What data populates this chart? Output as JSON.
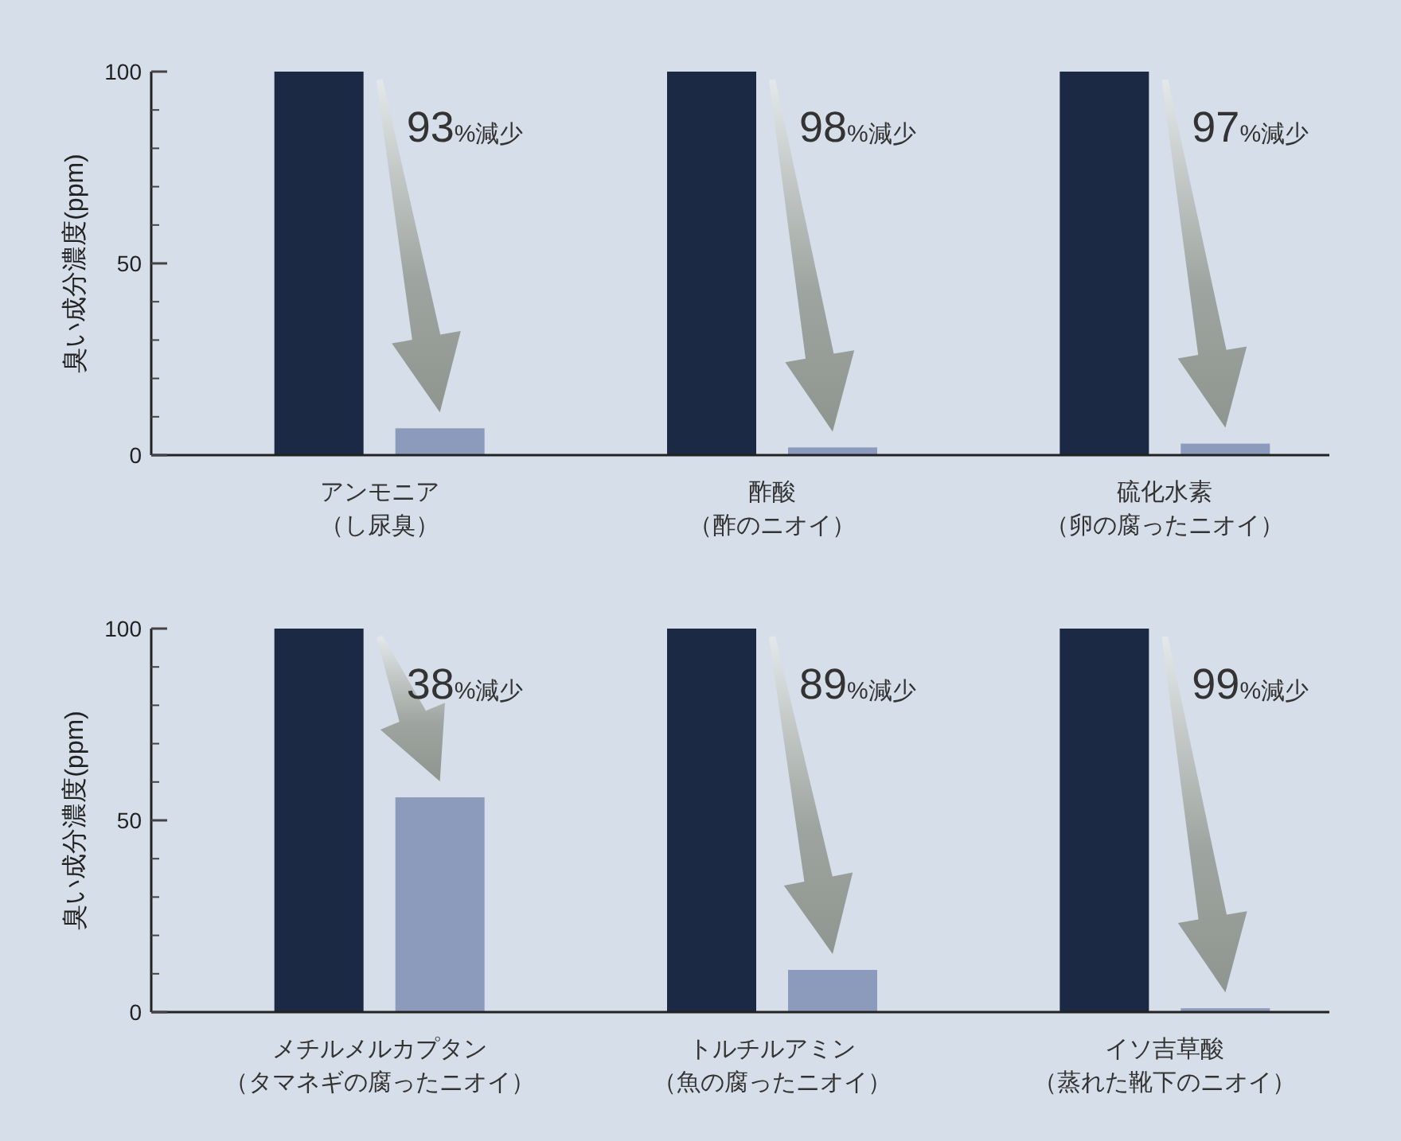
{
  "chart_data": [
    {
      "type": "bar",
      "ylabel": "臭い成分濃度(ppm)",
      "categories": [
        "アンモニア（し尿臭）",
        "酢酸（酢のニオイ）",
        "硫化水素（卵の腐ったニオイ）"
      ],
      "series": [
        {
          "color": "#1b2944",
          "values": [
            100,
            100,
            100
          ]
        },
        {
          "color": "#8c9bbc",
          "values": [
            7,
            2,
            3
          ]
        }
      ],
      "ylim": [
        0,
        100
      ],
      "yticks": [
        0,
        {
          "value": 10,
          "label": null
        },
        {
          "value": 20,
          "label": null
        },
        {
          "value": 30,
          "label": null
        },
        {
          "value": 40,
          "label": null
        },
        50,
        {
          "value": 60,
          "label": null
        },
        {
          "value": 70,
          "label": null
        },
        {
          "value": 80,
          "label": null
        },
        {
          "value": 90,
          "label": null
        },
        100
      ],
      "annotations": [
        "93%減少",
        "98%減少",
        "97%減少"
      ]
    },
    {
      "type": "bar",
      "ylabel": "臭い成分濃度(ppm)",
      "categories": [
        "メチルメルカプタン（タマネギの腐ったニオイ）",
        "トルチルアミン（魚の腐ったニオイ）",
        "イソ吉草酸（蒸れた靴下のニオイ）"
      ],
      "series": [
        {
          "color": "#1b2944",
          "values": [
            100,
            100,
            100
          ]
        },
        {
          "color": "#8c9bbc",
          "values": [
            56,
            11,
            1
          ]
        }
      ],
      "ylim": [
        0,
        100
      ],
      "yticks": [
        0,
        {
          "value": 10,
          "label": null
        },
        {
          "value": 20,
          "label": null
        },
        {
          "value": 30,
          "label": null
        },
        {
          "value": 40,
          "label": null
        },
        50,
        {
          "value": 60,
          "label": null
        },
        {
          "value": 70,
          "label": null
        },
        {
          "value": 80,
          "label": null
        },
        {
          "value": 90,
          "label": null
        },
        100
      ],
      "annotations": [
        "38%減少",
        "89%減少",
        "99%減少"
      ]
    }
  ]
}
